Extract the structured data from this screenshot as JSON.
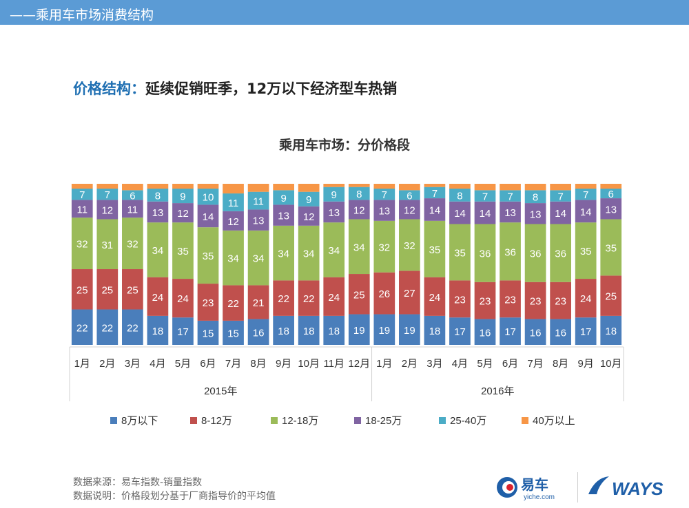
{
  "header": {
    "title": "——乘用车市场消费结构"
  },
  "headline": {
    "key": "价格结构：",
    "text": "延续促销旺季，12万以下经济型车热销"
  },
  "chart_data": {
    "type": "bar",
    "stacked": true,
    "title": "乘用车市场：分价格段",
    "categories": [
      "1月",
      "2月",
      "3月",
      "4月",
      "5月",
      "6月",
      "7月",
      "8月",
      "9月",
      "10月",
      "11月",
      "12月",
      "1月",
      "2月",
      "3月",
      "4月",
      "5月",
      "6月",
      "7月",
      "8月",
      "9月",
      "10月"
    ],
    "groups": [
      {
        "label": "2015年",
        "count": 12
      },
      {
        "label": "2016年",
        "count": 10
      }
    ],
    "ylim": [
      0,
      100
    ],
    "series": [
      {
        "name": "8万以下",
        "color": "#4a7ebb",
        "values": [
          22,
          22,
          22,
          18,
          17,
          15,
          15,
          16,
          18,
          18,
          18,
          19,
          19,
          19,
          18,
          17,
          16,
          17,
          16,
          16,
          17,
          18
        ]
      },
      {
        "name": "8-12万",
        "color": "#c0504d",
        "values": [
          25,
          25,
          25,
          24,
          24,
          23,
          22,
          21,
          22,
          22,
          24,
          25,
          26,
          27,
          24,
          23,
          23,
          23,
          23,
          23,
          24,
          25
        ]
      },
      {
        "name": "12-18万",
        "color": "#9bbb59",
        "values": [
          32,
          31,
          32,
          34,
          35,
          35,
          34,
          34,
          34,
          34,
          34,
          34,
          32,
          32,
          35,
          35,
          36,
          36,
          36,
          36,
          35,
          35
        ]
      },
      {
        "name": "18-25万",
        "color": "#8064a2",
        "values": [
          11,
          12,
          11,
          13,
          12,
          14,
          12,
          13,
          13,
          12,
          13,
          12,
          13,
          12,
          14,
          14,
          14,
          13,
          13,
          14,
          14,
          13
        ]
      },
      {
        "name": "25-40万",
        "color": "#4bacc6",
        "values": [
          7,
          7,
          6,
          8,
          9,
          10,
          11,
          11,
          9,
          9,
          9,
          8,
          7,
          6,
          7,
          8,
          7,
          7,
          8,
          7,
          7,
          6
        ]
      },
      {
        "name": "40万以上",
        "color": "#f79646",
        "values": [
          3,
          3,
          4,
          3,
          3,
          3,
          6,
          5,
          4,
          5,
          2,
          2,
          3,
          4,
          2,
          3,
          4,
          4,
          4,
          4,
          3,
          3
        ]
      }
    ]
  },
  "footer": {
    "source": "数据来源：易车指数-销量指数",
    "note": "数据说明：价格段划分基于厂商指导价的平均值",
    "logo1_text": "易车",
    "logo1_sub": "yiche.com",
    "logo2_text": "WAYS"
  }
}
